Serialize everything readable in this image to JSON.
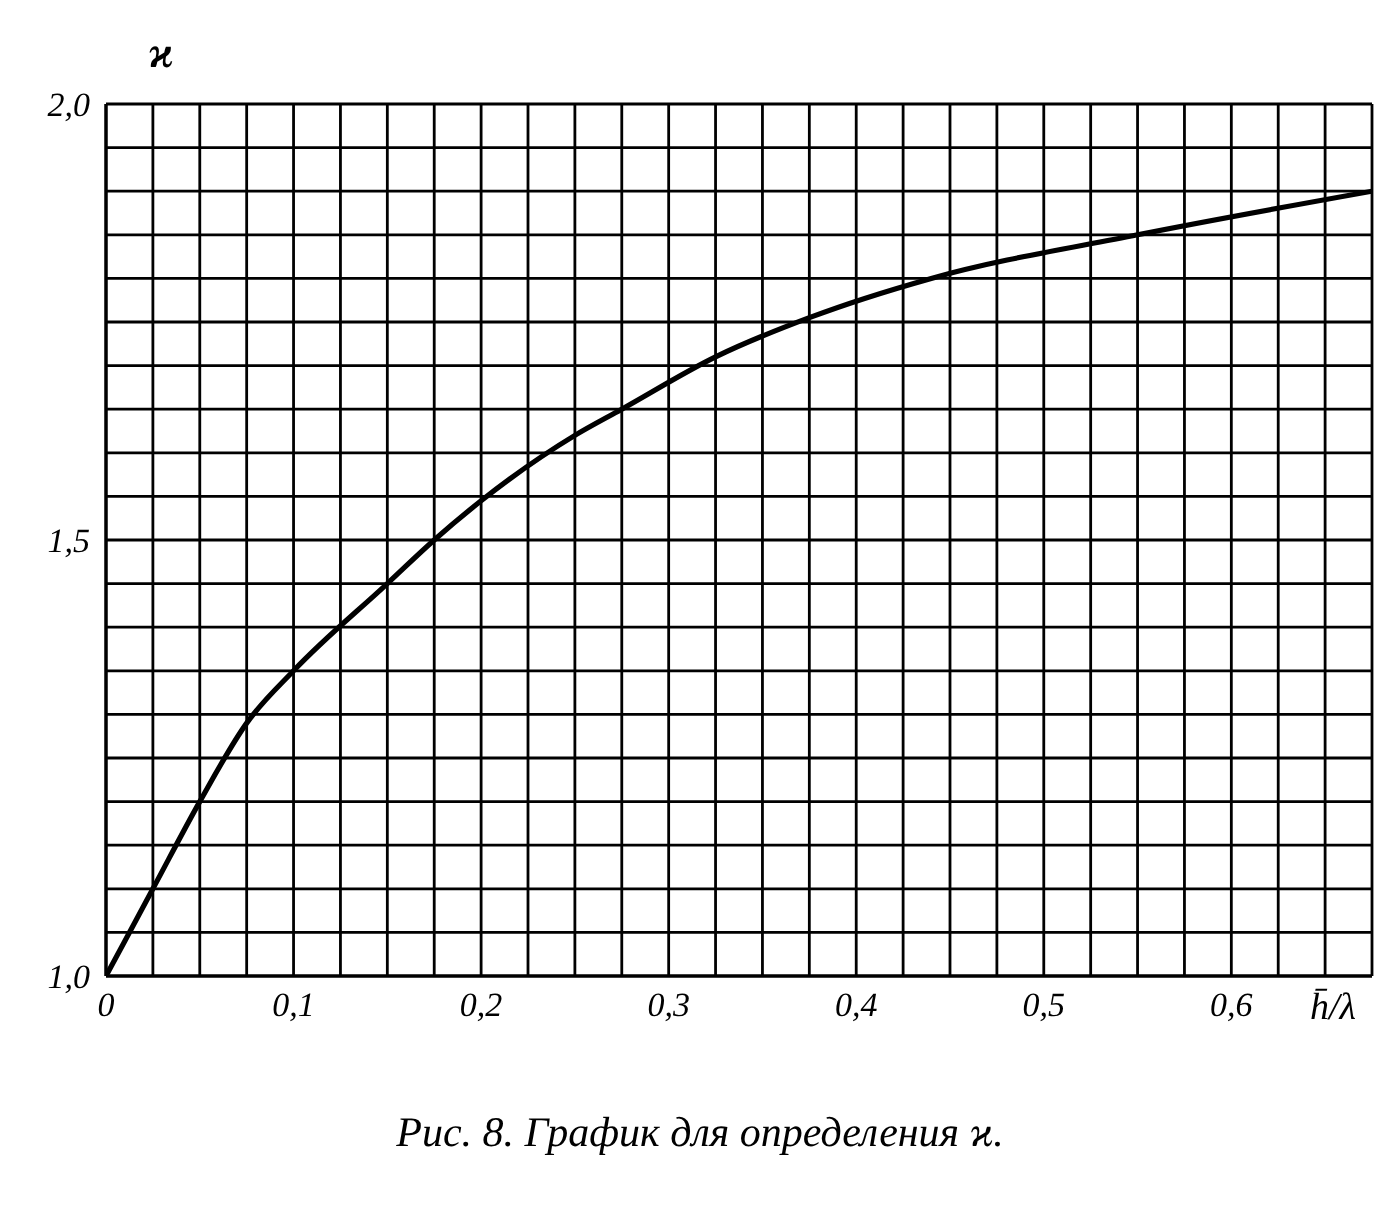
{
  "chart_data": {
    "type": "line",
    "title": "Рис. 8. График для определения ϰ.",
    "xlabel": "h̄/λ",
    "ylabel": "ϰ",
    "x": [
      0,
      0.025,
      0.05,
      0.075,
      0.1,
      0.15,
      0.175,
      0.2,
      0.25,
      0.275,
      0.325,
      0.375,
      0.44,
      0.55,
      0.675
    ],
    "series": [
      {
        "color": "#000000",
        "values": [
          1.0,
          1.1,
          1.2,
          1.29,
          1.35,
          1.45,
          1.5,
          1.545,
          1.62,
          1.65,
          1.71,
          1.755,
          1.8,
          1.85,
          1.9
        ]
      }
    ],
    "xlim": [
      0,
      0.675
    ],
    "xticks": [
      0,
      {
        "value": 0.025,
        "label": null
      },
      {
        "value": 0.05,
        "label": null
      },
      {
        "value": 0.075,
        "label": null
      },
      {
        "value": 0.1,
        "label": "0,1"
      },
      {
        "value": 0.125,
        "label": null
      },
      {
        "value": 0.15,
        "label": null
      },
      {
        "value": 0.175,
        "label": null
      },
      {
        "value": 0.2,
        "label": "0,2"
      },
      {
        "value": 0.225,
        "label": null
      },
      {
        "value": 0.25,
        "label": null
      },
      {
        "value": 0.275,
        "label": null
      },
      {
        "value": 0.3,
        "label": "0,3"
      },
      {
        "value": 0.325,
        "label": null
      },
      {
        "value": 0.35,
        "label": null
      },
      {
        "value": 0.375,
        "label": null
      },
      {
        "value": 0.4,
        "label": "0,4"
      },
      {
        "value": 0.425,
        "label": null
      },
      {
        "value": 0.45,
        "label": null
      },
      {
        "value": 0.475,
        "label": null
      },
      {
        "value": 0.5,
        "label": "0,5"
      },
      {
        "value": 0.525,
        "label": null
      },
      {
        "value": 0.55,
        "label": null
      },
      {
        "value": 0.575,
        "label": null
      },
      {
        "value": 0.6,
        "label": "0,6"
      },
      {
        "value": 0.625,
        "label": null
      },
      {
        "value": 0.65,
        "label": null
      },
      {
        "value": 0.675,
        "label": null
      }
    ],
    "ylim": [
      1.0,
      2.0
    ],
    "yticks": [
      {
        "value": 1.0,
        "label": "1,0"
      },
      {
        "value": 1.05,
        "label": null
      },
      {
        "value": 1.1,
        "label": null
      },
      {
        "value": 1.15,
        "label": null
      },
      {
        "value": 1.2,
        "label": null
      },
      {
        "value": 1.25,
        "label": null
      },
      {
        "value": 1.3,
        "label": null
      },
      {
        "value": 1.35,
        "label": null
      },
      {
        "value": 1.4,
        "label": null
      },
      {
        "value": 1.45,
        "label": null
      },
      {
        "value": 1.5,
        "label": "1,5"
      },
      {
        "value": 1.55,
        "label": null
      },
      {
        "value": 1.6,
        "label": null
      },
      {
        "value": 1.65,
        "label": null
      },
      {
        "value": 1.7,
        "label": null
      },
      {
        "value": 1.75,
        "label": null
      },
      {
        "value": 1.8,
        "label": null
      },
      {
        "value": 1.85,
        "label": null
      },
      {
        "value": 1.9,
        "label": null
      },
      {
        "value": 1.95,
        "label": null
      },
      {
        "value": 2.0,
        "label": "2,0"
      }
    ],
    "grid": true,
    "marker": "none",
    "line_style": "solid"
  }
}
